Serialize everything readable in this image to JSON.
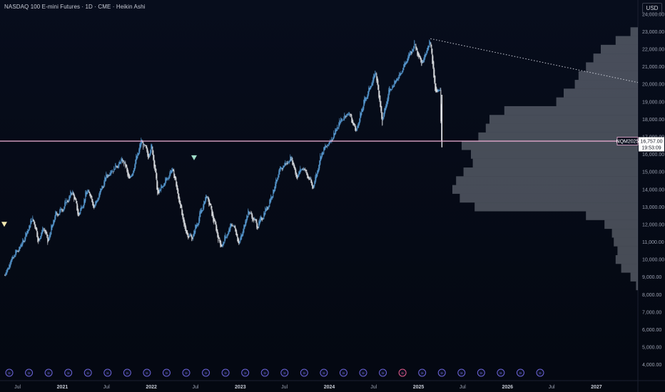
{
  "header": {
    "title": "NASDAQ 100 E-mini Futures · 1D · CME · Heikin Ashi",
    "currency": "USD"
  },
  "colors": {
    "up": "#5fa9e6",
    "down": "#f2f4f7",
    "line": "#f3b2d8",
    "background": "#050914",
    "volume_profile": "#c8ccd6"
  },
  "chart_data": {
    "type": "line",
    "chart_style": "heikin-ashi",
    "x_axis": [
      "Jul",
      "2021",
      "Jul",
      "2022",
      "Jul",
      "2023",
      "Jul",
      "2024",
      "Jul",
      "2025",
      "Jul",
      "2026",
      "Jul",
      "2027"
    ],
    "y_axis": [
      "24,000.00",
      "23,000.00",
      "22,000.00",
      "21,000.00",
      "20,000.00",
      "19,000.00",
      "18,000.00",
      "17,000.00",
      "16,000.00",
      "15,000.00",
      "14,000.00",
      "13,000.00",
      "12,000.00",
      "11,000.00",
      "10,000.00",
      "9,000.00",
      "8,000.00",
      "7,000.00",
      "6,000.00",
      "5,000.00",
      "4,000.00"
    ],
    "ylim": [
      3500,
      24400
    ],
    "xlim": [
      "2020-04-20",
      "2027-06-20"
    ],
    "series": [
      {
        "dates": [
          "2020-05-10",
          "2020-06-01",
          "2020-07-15",
          "2020-09-02",
          "2020-09-25",
          "2020-10-15",
          "2020-11-02",
          "2020-12-01",
          "2021-01-01",
          "2021-02-12",
          "2021-03-08",
          "2021-04-15",
          "2021-05-12",
          "2021-07-01",
          "2021-09-07",
          "2021-10-04",
          "2021-11-22",
          "2021-12-20",
          "2022-01-03",
          "2022-01-27",
          "2022-03-29",
          "2022-05-20",
          "2022-06-16",
          "2022-08-16",
          "2022-10-13",
          "2022-11-30",
          "2022-12-28",
          "2023-02-02",
          "2023-03-13",
          "2023-04-28",
          "2023-06-15",
          "2023-07-31",
          "2023-08-18",
          "2023-09-15",
          "2023-10-26",
          "2023-11-30",
          "2024-01-02",
          "2024-02-20",
          "2024-03-21",
          "2024-04-19",
          "2024-05-20",
          "2024-07-10",
          "2024-08-05",
          "2024-09-02",
          "2024-10-01",
          "2024-11-11",
          "2024-12-16",
          "2025-01-13",
          "2025-02-19",
          "2025-03-10",
          "2025-03-31",
          "2025-04-04",
          "2025-04-07"
        ],
        "values": [
          9100,
          9900,
          10800,
          12400,
          11000,
          11900,
          11000,
          12500,
          12900,
          13900,
          12500,
          14000,
          13000,
          14800,
          15700,
          14500,
          16800,
          15900,
          16500,
          13700,
          15200,
          11600,
          11200,
          13700,
          10700,
          12100,
          10900,
          12800,
          11900,
          13200,
          15200,
          15800,
          14700,
          15300,
          14100,
          16100,
          16700,
          18000,
          18400,
          17300,
          18900,
          20700,
          17800,
          19700,
          20200,
          21300,
          22300,
          21200,
          22500,
          19500,
          19700,
          17000,
          16757
        ]
      }
    ],
    "current_price": 16757.0,
    "price_tag": {
      "symbol": "NQM2025",
      "price": "16,757.00",
      "countdown": "19:53:09"
    },
    "trendline": {
      "from": {
        "date": "2025-02-19",
        "value": 22600
      },
      "to": {
        "date": "2027-06-20",
        "value": 20100
      }
    },
    "volume_profile": {
      "levels": [
        4000,
        4500,
        5000,
        5500,
        6000,
        6500,
        7000,
        7500,
        8000,
        8500,
        9000,
        9500,
        10000,
        10500,
        11000,
        11500,
        12000,
        12500,
        13000,
        13500,
        14000,
        14500,
        15000,
        15500,
        16000,
        16500,
        17000,
        17500,
        18000,
        18500,
        19000,
        19500,
        20000,
        20500,
        21000,
        21500,
        22000,
        22500,
        23000,
        23500
      ],
      "volumes": [
        0,
        0,
        0,
        0,
        0,
        0,
        0,
        0,
        0,
        1,
        4,
        9,
        12,
        11,
        13,
        14,
        18,
        28,
        88,
        96,
        100,
        98,
        94,
        89,
        90,
        95,
        86,
        82,
        80,
        72,
        44,
        40,
        34,
        32,
        28,
        24,
        20,
        12,
        4,
        0
      ]
    }
  },
  "events": {
    "count": 28,
    "glyph": "»"
  }
}
